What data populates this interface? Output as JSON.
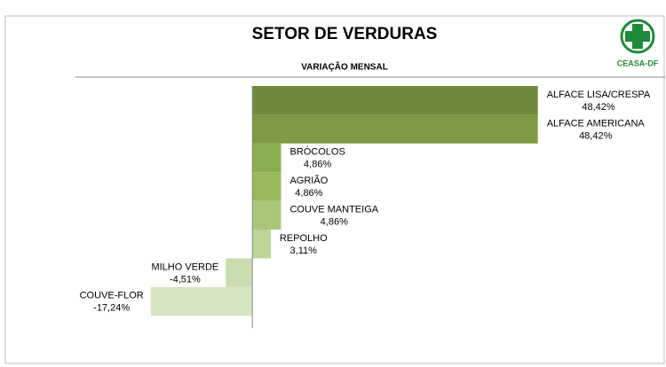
{
  "logo_text": "CEASA-DF",
  "chart_data": {
    "type": "barh",
    "title": "SETOR DE VERDURAS",
    "subtitle": "VARIAÇÃO MENSAL",
    "categories": [
      "ALFACE LISA/CRESPA",
      "ALFACE AMERICANA",
      "BRÓCOLOS",
      "AGRIÃO",
      "COUVE MANTEIGA",
      "REPOLHO",
      "MILHO VERDE",
      "COUVE-FLOR"
    ],
    "values": [
      48.42,
      48.42,
      4.86,
      4.86,
      4.86,
      3.11,
      -4.51,
      -17.24
    ],
    "value_labels": [
      "48,42%",
      "48,42%",
      "4,86%",
      "4,86%",
      "4,86%",
      "3,11%",
      "-4,51%",
      "-17,24%"
    ],
    "colors": [
      "#6f8a3f",
      "#7e9b44",
      "#8aad4f",
      "#97b95a",
      "#a8c77a",
      "#bbd59a",
      "#c9dcaf",
      "#d5e4c1"
    ],
    "xlim": [
      -30,
      70
    ]
  }
}
